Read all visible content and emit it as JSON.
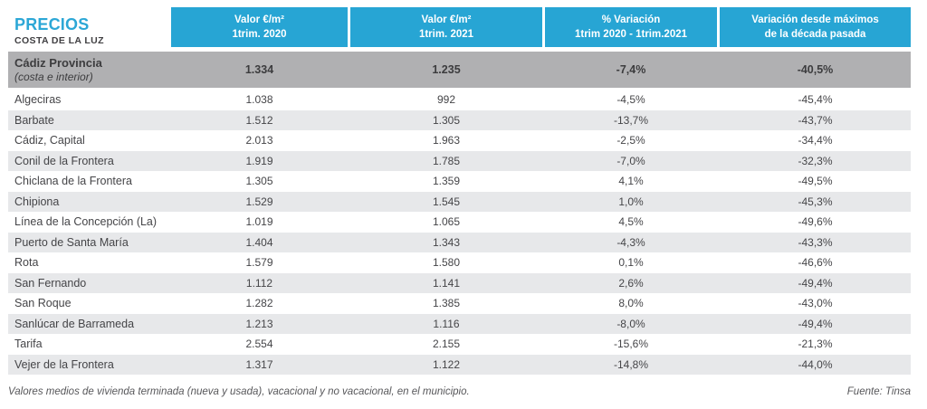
{
  "header": {
    "title": "PRECIOS",
    "subtitle": "COSTA DE LA LUZ",
    "columns": [
      {
        "line1": "Valor €/m²",
        "line2": "1trim. 2020"
      },
      {
        "line1": "Valor €/m²",
        "line2": "1trim. 2021"
      },
      {
        "line1": "% Variación",
        "line2": "1trim 2020 - 1trim.2021"
      },
      {
        "line1": "Variación desde máximos",
        "line2": "de la década pasada"
      }
    ]
  },
  "summary": {
    "name": "Cádiz Provincia",
    "subname": "(costa e interior)",
    "v2020": "1.334",
    "v2021": "1.235",
    "variation": "-7,4%",
    "from_max": "-40,5%"
  },
  "table": {
    "rows": [
      {
        "name": "Algeciras",
        "v2020": "1.038",
        "v2021": "992",
        "variation": "-4,5%",
        "from_max": "-45,4%"
      },
      {
        "name": "Barbate",
        "v2020": "1.512",
        "v2021": "1.305",
        "variation": "-13,7%",
        "from_max": "-43,7%"
      },
      {
        "name": "Cádiz, Capital",
        "v2020": "2.013",
        "v2021": "1.963",
        "variation": "-2,5%",
        "from_max": "-34,4%"
      },
      {
        "name": "Conil de la Frontera",
        "v2020": "1.919",
        "v2021": "1.785",
        "variation": "-7,0%",
        "from_max": "-32,3%"
      },
      {
        "name": "Chiclana de la Frontera",
        "v2020": "1.305",
        "v2021": "1.359",
        "variation": "4,1%",
        "from_max": "-49,5%"
      },
      {
        "name": "Chipiona",
        "v2020": "1.529",
        "v2021": "1.545",
        "variation": "1,0%",
        "from_max": "-45,3%"
      },
      {
        "name": "Línea de la Concepción (La)",
        "v2020": "1.019",
        "v2021": "1.065",
        "variation": "4,5%",
        "from_max": "-49,6%"
      },
      {
        "name": "Puerto de Santa María",
        "v2020": "1.404",
        "v2021": "1.343",
        "variation": "-4,3%",
        "from_max": "-43,3%"
      },
      {
        "name": "Rota",
        "v2020": "1.579",
        "v2021": "1.580",
        "variation": "0,1%",
        "from_max": "-46,6%"
      },
      {
        "name": "San Fernando",
        "v2020": "1.112",
        "v2021": "1.141",
        "variation": "2,6%",
        "from_max": "-49,4%"
      },
      {
        "name": "San Roque",
        "v2020": "1.282",
        "v2021": "1.385",
        "variation": "8,0%",
        "from_max": "-43,0%"
      },
      {
        "name": "Sanlúcar de Barrameda",
        "v2020": "1.213",
        "v2021": "1.116",
        "variation": "-8,0%",
        "from_max": "-49,4%"
      },
      {
        "name": "Tarifa",
        "v2020": "2.554",
        "v2021": "2.155",
        "variation": "-15,6%",
        "from_max": "-21,3%"
      },
      {
        "name": "Vejer de la Frontera",
        "v2020": "1.317",
        "v2021": "1.122",
        "variation": "-14,8%",
        "from_max": "-44,0%"
      }
    ]
  },
  "footer": {
    "note": "Valores medios de vivienda terminada (nueva y usada), vacacional y no vacacional, en el municipio.",
    "source": "Fuente: Tinsa"
  },
  "colors": {
    "header_band": "#27a5d4",
    "title_accent": "#2ca7d6",
    "summary_row_bg": "#b0b0b2",
    "stripe_bg": "#e7e8ea",
    "body_text": "#454548"
  },
  "chart_data": {
    "type": "table",
    "title": "PRECIOS COSTA DE LA LUZ",
    "columns": [
      "Municipio",
      "Valor €/m² 1trim. 2020",
      "Valor €/m² 1trim. 2021",
      "% Variación 1trim 2020 - 1trim.2021",
      "Variación desde máximos de la década pasada"
    ],
    "rows": [
      [
        "Cádiz Provincia (costa e interior)",
        "1.334",
        "1.235",
        "-7,4%",
        "-40,5%"
      ],
      [
        "Algeciras",
        "1.038",
        "992",
        "-4,5%",
        "-45,4%"
      ],
      [
        "Barbate",
        "1.512",
        "1.305",
        "-13,7%",
        "-43,7%"
      ],
      [
        "Cádiz, Capital",
        "2.013",
        "1.963",
        "-2,5%",
        "-34,4%"
      ],
      [
        "Conil de la Frontera",
        "1.919",
        "1.785",
        "-7,0%",
        "-32,3%"
      ],
      [
        "Chiclana de la Frontera",
        "1.305",
        "1.359",
        "4,1%",
        "-49,5%"
      ],
      [
        "Chipiona",
        "1.529",
        "1.545",
        "1,0%",
        "-45,3%"
      ],
      [
        "Línea de la Concepción (La)",
        "1.019",
        "1.065",
        "4,5%",
        "-49,6%"
      ],
      [
        "Puerto de Santa María",
        "1.404",
        "1.343",
        "-4,3%",
        "-43,3%"
      ],
      [
        "Rota",
        "1.579",
        "1.580",
        "0,1%",
        "-46,6%"
      ],
      [
        "San Fernando",
        "1.112",
        "1.141",
        "2,6%",
        "-49,4%"
      ],
      [
        "San Roque",
        "1.282",
        "1.385",
        "8,0%",
        "-43,0%"
      ],
      [
        "Sanlúcar de Barrameda",
        "1.213",
        "1.116",
        "-8,0%",
        "-49,4%"
      ],
      [
        "Tarifa",
        "2.554",
        "2.155",
        "-15,6%",
        "-21,3%"
      ],
      [
        "Vejer de la Frontera",
        "1.317",
        "1.122",
        "-14,8%",
        "-44,0%"
      ]
    ],
    "source": "Fuente: Tinsa"
  }
}
